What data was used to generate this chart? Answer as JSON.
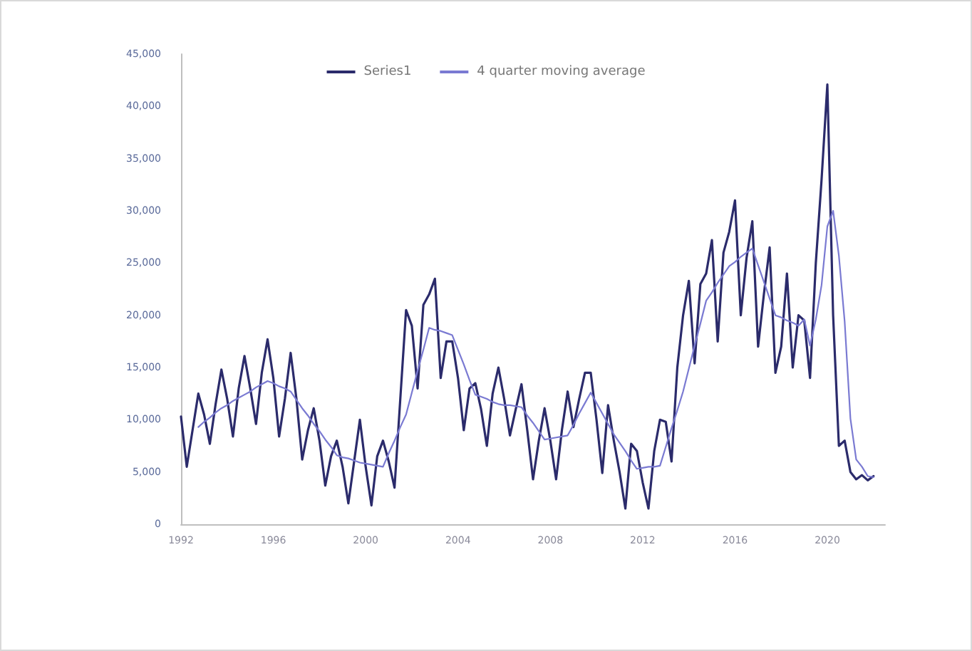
{
  "chart_data": {
    "type": "line",
    "legend": "top",
    "grid": false,
    "marker": "none",
    "line_style": "solid",
    "xlim": [
      1992,
      2022.5
    ],
    "xticks": [
      1992,
      1996,
      2000,
      2004,
      2008,
      2012,
      2016,
      2020
    ],
    "ylim": [
      0,
      45000
    ],
    "yticks": [
      0,
      {
        "value": 5000,
        "label": "5,000"
      },
      {
        "value": 10000,
        "label": "10,000"
      },
      {
        "value": 15000,
        "label": "15,000"
      },
      {
        "value": 20000,
        "label": "20,000"
      },
      {
        "value": 25000,
        "label": "25,000"
      },
      {
        "value": 30000,
        "label": "30,000"
      },
      {
        "value": 35000,
        "label": "35,000"
      },
      {
        "value": 40000,
        "label": "40,000"
      },
      {
        "value": 45000,
        "label": "45,000"
      }
    ],
    "x": [
      1992,
      1992.25,
      1992.5,
      1992.75,
      1993,
      1993.25,
      1993.5,
      1993.75,
      1994,
      1994.25,
      1994.5,
      1994.75,
      1995,
      1995.25,
      1995.5,
      1995.75,
      1996,
      1996.25,
      1996.5,
      1996.75,
      1997,
      1997.25,
      1997.5,
      1997.75,
      1998,
      1998.25,
      1998.5,
      1998.75,
      1999,
      1999.25,
      1999.5,
      1999.75,
      2000,
      2000.25,
      2000.5,
      2000.75,
      2001,
      2001.25,
      2001.5,
      2001.75,
      2002,
      2002.25,
      2002.5,
      2002.75,
      2003,
      2003.25,
      2003.5,
      2003.75,
      2004,
      2004.25,
      2004.5,
      2004.75,
      2005,
      2005.25,
      2005.5,
      2005.75,
      2006,
      2006.25,
      2006.5,
      2006.75,
      2007,
      2007.25,
      2007.5,
      2007.75,
      2008,
      2008.25,
      2008.5,
      2008.75,
      2009,
      2009.25,
      2009.5,
      2009.75,
      2010,
      2010.25,
      2010.5,
      2010.75,
      2011,
      2011.25,
      2011.5,
      2011.75,
      2012,
      2012.25,
      2012.5,
      2012.75,
      2013,
      2013.25,
      2013.5,
      2013.75,
      2014,
      2014.25,
      2014.5,
      2014.75,
      2015,
      2015.25,
      2015.5,
      2015.75,
      2016,
      2016.25,
      2016.5,
      2016.75,
      2017,
      2017.25,
      2017.5,
      2017.75,
      2018,
      2018.25,
      2018.5,
      2018.75,
      2019,
      2019.25,
      2019.5,
      2019.75,
      2020,
      2020.25,
      2020.5,
      2020.75,
      2021,
      2021.25,
      2021.5,
      2021.75,
      2022
    ],
    "series": [
      {
        "name": "Series1",
        "color": "#2b2b6b",
        "values": [
          10300,
          5500,
          9000,
          12500,
          10500,
          7700,
          11500,
          14800,
          12000,
          8400,
          13000,
          16100,
          13000,
          9600,
          14500,
          17700,
          14000,
          8400,
          12000,
          16400,
          12000,
          6200,
          9000,
          11100,
          8000,
          3700,
          6500,
          8000,
          5500,
          2000,
          6000,
          10000,
          5500,
          1800,
          6500,
          8000,
          6000,
          3500,
          12000,
          20500,
          19000,
          13000,
          21000,
          22000,
          23500,
          14000,
          17500,
          17500,
          14000,
          9000,
          13000,
          13500,
          11000,
          7500,
          12500,
          15000,
          12000,
          8500,
          11000,
          13400,
          9000,
          4300,
          8000,
          11100,
          8000,
          4300,
          9000,
          12700,
          9300,
          12000,
          14500,
          14500,
          10000,
          4900,
          11400,
          8000,
          5000,
          1500,
          7700,
          7000,
          4000,
          1500,
          7000,
          10000,
          9800,
          6000,
          15000,
          20000,
          23300,
          15400,
          23000,
          24000,
          27200,
          17500,
          26000,
          28000,
          31000,
          20000,
          25500,
          29000,
          17000,
          22000,
          26500,
          14500,
          17000,
          24000,
          15000,
          20000,
          19500,
          14000,
          25000,
          33000,
          42100,
          20000,
          7500,
          8000,
          5000,
          4300,
          4700,
          4200,
          4600
        ]
      },
      {
        "name": "4 quarter moving average",
        "color": "#7a7ad2",
        "values": [
          null,
          null,
          null,
          9300,
          9800,
          10200,
          10700,
          11100,
          11400,
          11800,
          12100,
          12400,
          12700,
          13100,
          13400,
          13700,
          13500,
          13200,
          13000,
          12700,
          11900,
          11100,
          10400,
          9600,
          8900,
          8100,
          7400,
          6600,
          6400,
          6300,
          6100,
          5900,
          5800,
          5700,
          5600,
          5500,
          6800,
          8000,
          9300,
          10500,
          12600,
          14700,
          16700,
          18800,
          18600,
          18500,
          18300,
          18100,
          16700,
          15300,
          13800,
          12400,
          12200,
          12000,
          11700,
          11500,
          11400,
          11400,
          11300,
          11200,
          10400,
          9700,
          8900,
          8100,
          8200,
          8300,
          8400,
          8500,
          9500,
          10600,
          11600,
          12600,
          11600,
          10600,
          9600,
          8600,
          7800,
          7000,
          6100,
          5300,
          5400,
          5500,
          5500,
          5600,
          7400,
          9200,
          10900,
          12700,
          14900,
          17100,
          19200,
          21400,
          22200,
          23100,
          23900,
          24700,
          25100,
          25600,
          26000,
          26400,
          24800,
          23200,
          21600,
          20000,
          19800,
          19500,
          19300,
          19000,
          19600,
          17100,
          19600,
          22900,
          28500,
          30000,
          25700,
          19400,
          10100,
          6200,
          5500,
          4600,
          4500
        ]
      }
    ]
  }
}
